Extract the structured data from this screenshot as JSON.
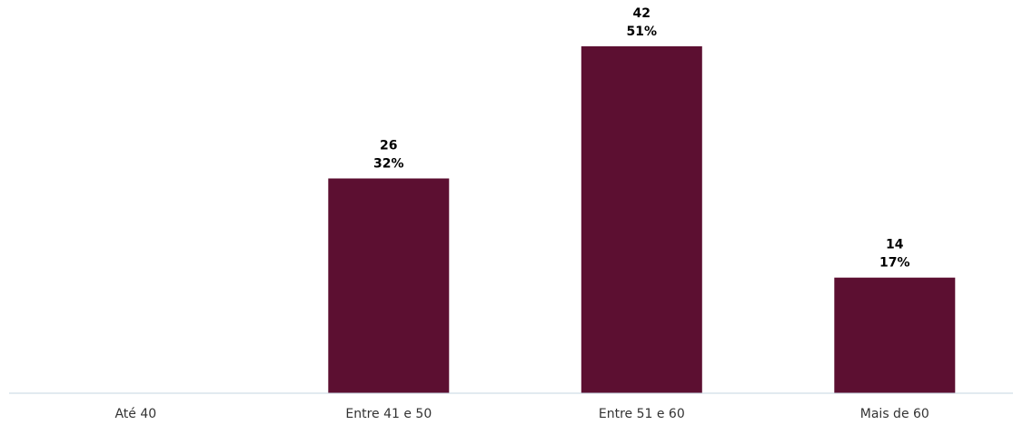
{
  "chart_data": {
    "type": "bar",
    "categories": [
      "Até 40",
      "Entre 41 e 50",
      "Entre 51 e 60",
      "Mais de 60"
    ],
    "values": [
      0,
      26,
      42,
      14
    ],
    "percent_labels": [
      "",
      "32%",
      "51%",
      "17%"
    ],
    "count_labels": [
      "",
      "26",
      "42",
      "14"
    ],
    "title": "",
    "xlabel": "",
    "ylabel": "",
    "ylim": [
      0,
      42
    ],
    "grid": false,
    "legend": "none",
    "bar_color": "#5c0f31",
    "axis_color": "#c6d4e1"
  }
}
